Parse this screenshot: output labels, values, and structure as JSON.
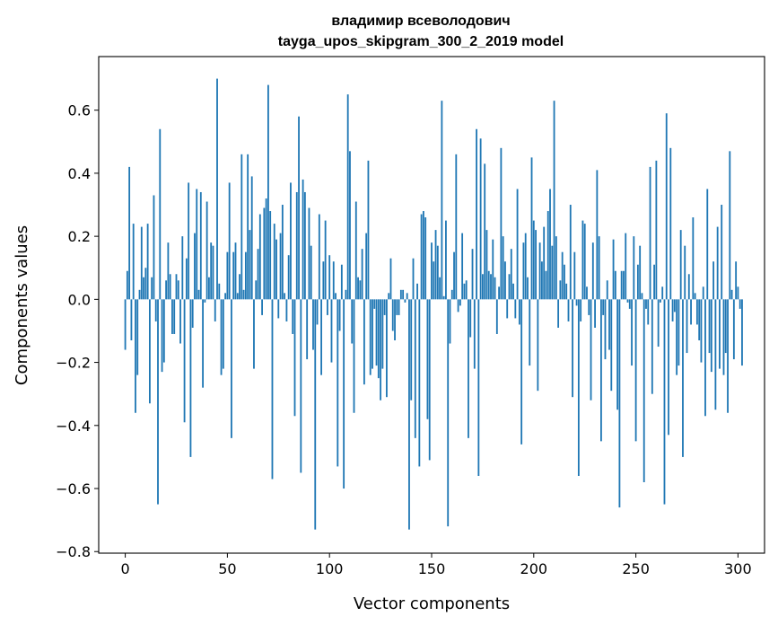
{
  "chart_data": {
    "type": "bar",
    "title": "владимир всеволодович",
    "subtitle": "tayga_upos_skipgram_300_2_2019 model",
    "xlabel": "Vector components",
    "ylabel": "Components values",
    "xlim": [
      -13,
      313
    ],
    "ylim": [
      -0.805,
      0.77
    ],
    "xticks": [
      0,
      50,
      100,
      150,
      200,
      250,
      300
    ],
    "yticks": [
      -0.8,
      -0.6,
      -0.4,
      -0.2,
      0.0,
      0.2,
      0.4,
      0.6
    ],
    "ytick_labels": [
      "−0.8",
      "−0.6",
      "−0.4",
      "−0.2",
      "0.0",
      "0.2",
      "0.4",
      "0.6"
    ],
    "bar_color": "#1f77b4",
    "values": [
      -0.16,
      0.09,
      0.42,
      -0.13,
      0.24,
      -0.36,
      -0.24,
      0.03,
      0.23,
      0.07,
      0.1,
      0.24,
      -0.33,
      0.07,
      0.33,
      -0.07,
      -0.65,
      0.54,
      -0.23,
      -0.2,
      0.06,
      0.18,
      0.08,
      -0.11,
      -0.11,
      0.08,
      0.06,
      -0.14,
      0.2,
      -0.39,
      0.13,
      0.37,
      -0.5,
      -0.09,
      0.21,
      0.35,
      0.03,
      0.34,
      -0.28,
      -0.01,
      0.31,
      0.07,
      0.18,
      0.17,
      -0.07,
      0.7,
      0.05,
      -0.24,
      -0.22,
      0.02,
      0.15,
      0.37,
      -0.44,
      0.15,
      0.18,
      0.02,
      0.08,
      0.46,
      0.03,
      0.15,
      0.46,
      0.22,
      0.39,
      -0.22,
      0.06,
      0.16,
      0.27,
      -0.05,
      0.29,
      0.32,
      0.68,
      0.28,
      -0.57,
      0.24,
      0.19,
      -0.06,
      0.21,
      0.3,
      0.02,
      -0.07,
      0.14,
      0.37,
      -0.11,
      -0.37,
      0.34,
      0.58,
      -0.55,
      0.38,
      0.34,
      -0.19,
      0.29,
      0.17,
      -0.16,
      -0.73,
      -0.08,
      0.27,
      -0.24,
      0.12,
      0.25,
      -0.05,
      0.14,
      -0.2,
      0.12,
      0.02,
      -0.53,
      -0.1,
      0.11,
      -0.6,
      0.03,
      0.65,
      0.47,
      -0.14,
      -0.36,
      0.31,
      0.07,
      0.06,
      0.16,
      -0.27,
      0.21,
      0.44,
      -0.24,
      -0.22,
      -0.03,
      -0.21,
      -0.25,
      -0.32,
      -0.22,
      -0.05,
      -0.31,
      0.02,
      0.13,
      -0.1,
      -0.13,
      -0.05,
      -0.05,
      0.03,
      0.03,
      -0.01,
      0.02,
      -0.73,
      -0.32,
      0.13,
      -0.44,
      0.05,
      -0.53,
      0.27,
      0.28,
      0.26,
      -0.38,
      -0.51,
      0.18,
      0.12,
      0.22,
      0.17,
      0.07,
      0.63,
      0.01,
      0.25,
      -0.72,
      -0.14,
      0.03,
      0.15,
      0.46,
      -0.04,
      -0.02,
      0.21,
      0.05,
      0.06,
      -0.44,
      -0.12,
      0.16,
      -0.22,
      0.54,
      -0.56,
      0.51,
      0.08,
      0.43,
      0.22,
      0.09,
      0.08,
      0.19,
      0.07,
      -0.11,
      0.04,
      0.48,
      0.2,
      0.12,
      -0.06,
      0.08,
      0.16,
      0.05,
      -0.06,
      0.35,
      -0.08,
      -0.46,
      0.18,
      0.21,
      0.07,
      -0.21,
      0.45,
      0.25,
      0.22,
      -0.29,
      0.18,
      0.12,
      0.23,
      0.09,
      0.28,
      0.35,
      0.17,
      0.63,
      0.2,
      -0.09,
      0.06,
      0.15,
      0.11,
      0.05,
      -0.07,
      0.3,
      -0.31,
      0.15,
      -0.02,
      -0.56,
      -0.07,
      0.25,
      0.24,
      0.04,
      -0.05,
      -0.32,
      0.18,
      -0.09,
      0.41,
      0.2,
      -0.45,
      -0.05,
      -0.19,
      0.06,
      -0.16,
      -0.29,
      0.19,
      0.09,
      -0.35,
      -0.66,
      0.09,
      0.09,
      0.21,
      -0.01,
      -0.03,
      -0.21,
      0.2,
      -0.45,
      0.11,
      0.17,
      0.02,
      -0.58,
      -0.03,
      -0.08,
      0.42,
      -0.3,
      0.11,
      0.44,
      -0.15,
      -0.01,
      0.04,
      -0.65,
      0.59,
      -0.43,
      0.48,
      -0.07,
      -0.04,
      -0.24,
      -0.21,
      0.22,
      -0.5,
      0.17,
      -0.17,
      0.08,
      -0.08,
      0.26,
      0.02,
      -0.08,
      -0.13,
      -0.2,
      0.04,
      -0.37,
      0.35,
      -0.17,
      -0.23,
      0.12,
      -0.35,
      0.23,
      -0.22,
      0.3,
      -0.24,
      -0.17,
      -0.36,
      0.47,
      0.03,
      -0.19,
      0.12,
      0.04,
      -0.03,
      -0.21
    ]
  }
}
